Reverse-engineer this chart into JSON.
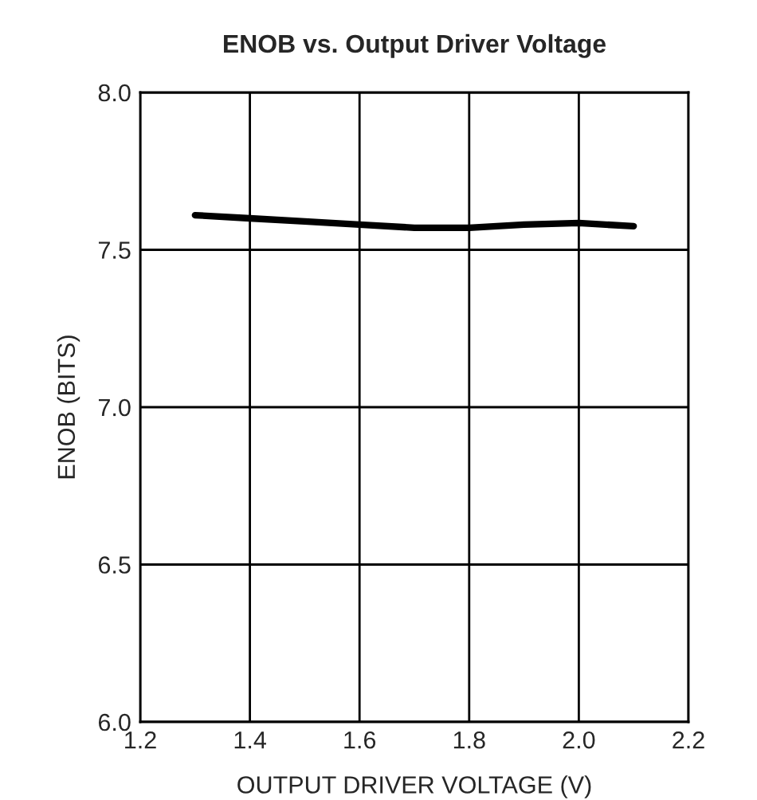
{
  "chart_data": {
    "type": "line",
    "title": "ENOB vs. Output Driver Voltage",
    "xlabel": "OUTPUT DRIVER VOLTAGE (V)",
    "ylabel": "ENOB (BITS)",
    "x": [
      1.3,
      1.4,
      1.5,
      1.6,
      1.7,
      1.8,
      1.9,
      2.0,
      2.1
    ],
    "series": [
      {
        "color": "#000000",
        "values": [
          7.61,
          7.6,
          7.59,
          7.58,
          7.57,
          7.57,
          7.58,
          7.585,
          7.575
        ]
      }
    ],
    "xlim": [
      1.2,
      2.2
    ],
    "xticks": [
      {
        "value": 1.2,
        "label": "1.2"
      },
      {
        "value": 1.4,
        "label": "1.4"
      },
      {
        "value": 1.6,
        "label": "1.6"
      },
      {
        "value": 1.8,
        "label": "1.8"
      },
      {
        "value": 2.0,
        "label": "2.0"
      },
      {
        "value": 2.2,
        "label": "2.2"
      }
    ],
    "ylim": [
      6.0,
      8.0
    ],
    "yticks": [
      {
        "value": 6.0,
        "label": "6.0"
      },
      {
        "value": 6.5,
        "label": "6.5"
      },
      {
        "value": 7.0,
        "label": "7.0"
      },
      {
        "value": 7.5,
        "label": "7.5"
      },
      {
        "value": 8.0,
        "label": "8.0"
      }
    ],
    "grid": true
  }
}
